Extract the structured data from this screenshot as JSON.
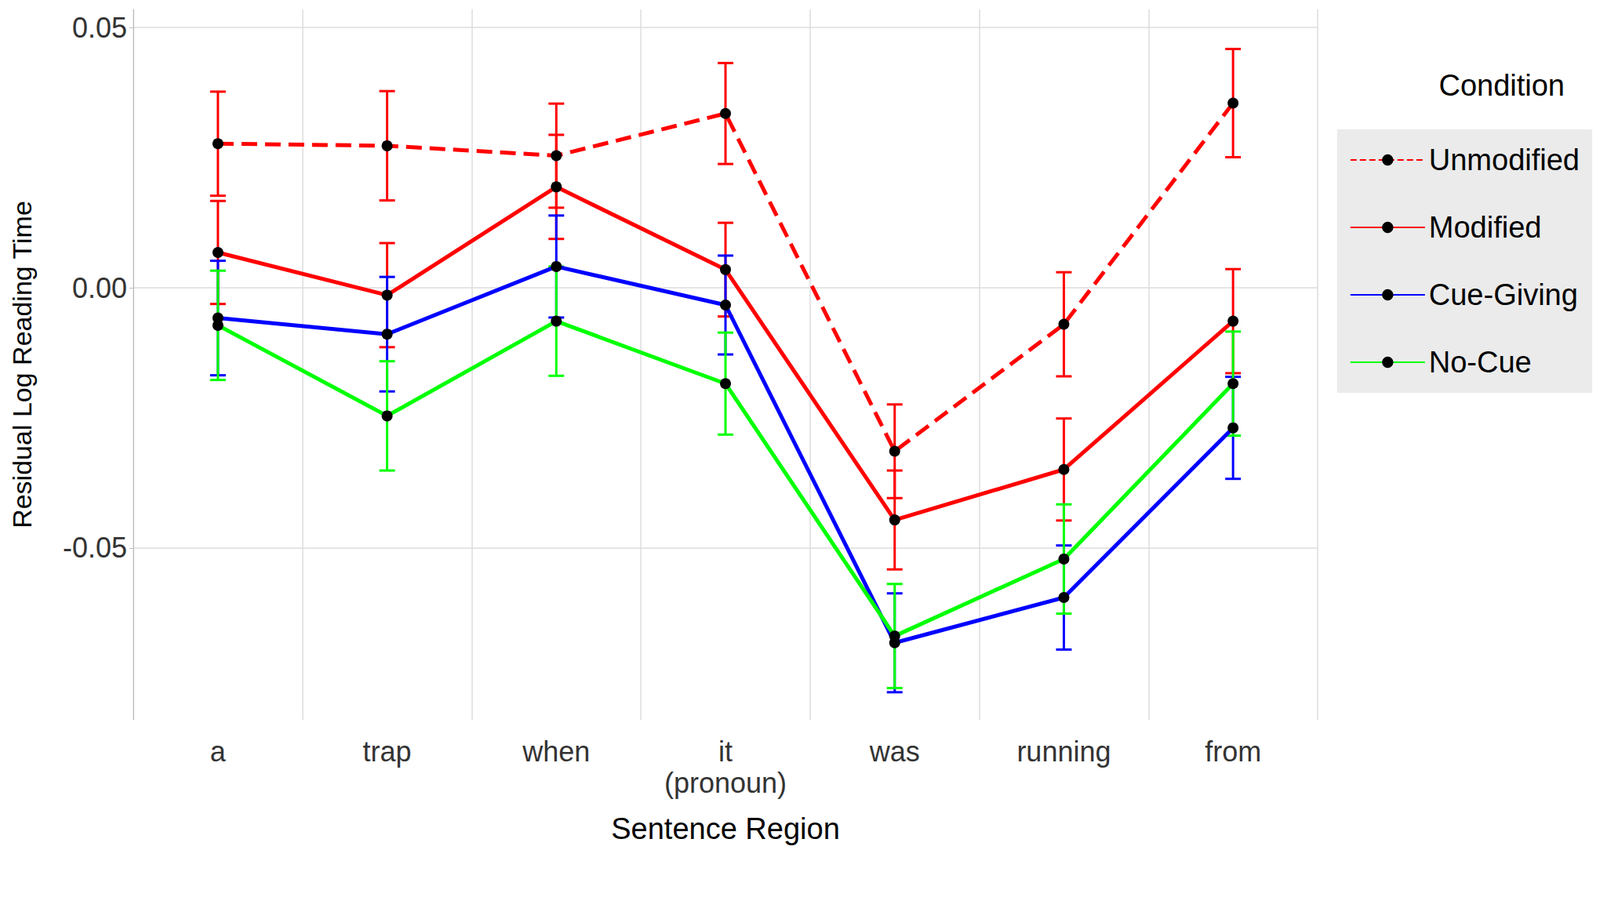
{
  "chart_data": {
    "type": "line",
    "x_label": "Sentence Region",
    "y_label": "Residual Log Reading Time",
    "legend_title": "Condition",
    "legend": "right",
    "grid": true,
    "marker": "circle",
    "categories": [
      "a",
      "trap",
      "when",
      "it\n(pronoun)",
      "was",
      "running",
      "from"
    ],
    "ylim": [
      -0.083,
      0.0535
    ],
    "yticks": [
      -0.05,
      {
        "value": 0,
        "label": "0.00"
      },
      0.05
    ],
    "series": [
      {
        "name": "Unmodified",
        "color": "#ff0000",
        "line_style": "dashed",
        "values": [
          0.0277,
          0.0273,
          0.0254,
          0.0335,
          -0.0314,
          -0.007,
          0.0355
        ],
        "errors": [
          0.01,
          0.0105,
          0.01,
          0.0097,
          0.009,
          0.01,
          0.0104
        ]
      },
      {
        "name": "Modified",
        "color": "#ff0000",
        "line_style": "solid",
        "values": [
          0.0068,
          -0.0014,
          0.0194,
          0.0035,
          -0.0446,
          -0.0349,
          -0.0064
        ],
        "errors": [
          0.0099,
          0.01,
          0.01,
          0.009,
          0.0095,
          0.0098,
          0.01
        ]
      },
      {
        "name": "Cue-Giving",
        "color": "#0000ff",
        "line_style": "solid",
        "values": [
          -0.0058,
          -0.0089,
          0.0041,
          -0.0033,
          -0.0682,
          -0.0595,
          -0.0269
        ],
        "errors": [
          0.011,
          0.011,
          0.0098,
          0.0095,
          0.0095,
          0.01,
          0.0098
        ]
      },
      {
        "name": "No-Cue",
        "color": "#00ff00",
        "line_style": "solid",
        "values": [
          -0.0072,
          -0.0246,
          -0.0064,
          -0.0184,
          -0.0669,
          -0.0521,
          -0.0184
        ],
        "errors": [
          0.0105,
          0.0105,
          0.0105,
          0.0098,
          0.01,
          0.0105,
          0.01
        ]
      }
    ]
  }
}
